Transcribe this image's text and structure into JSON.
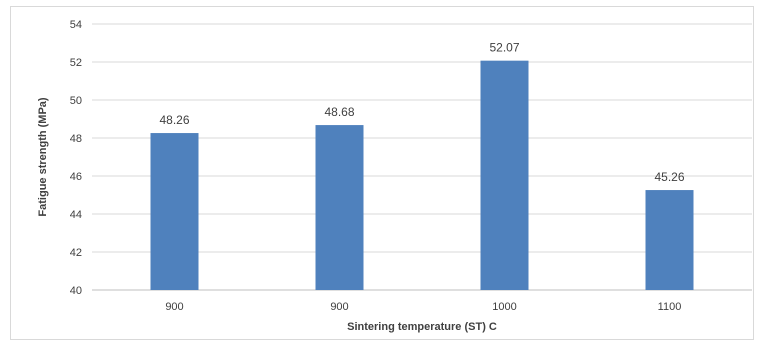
{
  "chart_data": {
    "type": "bar",
    "categories": [
      "900",
      "900",
      "1000",
      "1100"
    ],
    "values": [
      48.26,
      48.68,
      52.07,
      45.26
    ],
    "data_labels": [
      "48.26",
      "48.68",
      "52.07",
      "45.26"
    ],
    "title": "",
    "xlabel": "Sintering temperature (ST) C",
    "ylabel": "Fatigue strength (MPa)",
    "ylim": [
      40,
      54
    ],
    "yticks": [
      40,
      42,
      44,
      46,
      48,
      50,
      52,
      54
    ],
    "grid": true,
    "legend": "none",
    "bar_color": "#4f81bd",
    "grid_color": "#d9d9d9"
  }
}
